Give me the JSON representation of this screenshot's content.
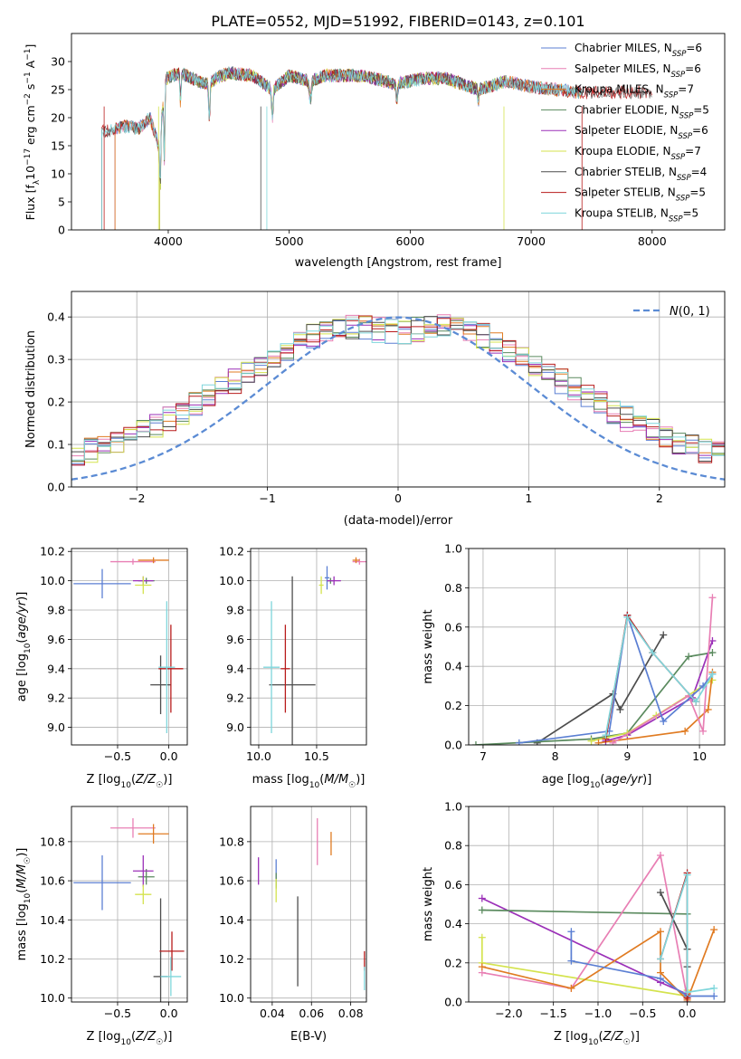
{
  "figure_title": "PLATE=0552, MJD=51992, FIBERID=0143, z=0.101",
  "colors": {
    "Chabrier MILES": "#5b7fd3",
    "Salpeter MILES": "#e87fb4",
    "Kroupa MILES": "#e07b22",
    "Chabrier ELODIE": "#5a8a5e",
    "Salpeter ELODIE": "#9b30b8",
    "Kroupa ELODIE": "#d4e34e",
    "Chabrier STELIB": "#4d4d4d",
    "Salpeter STELIB": "#b81c1c",
    "Kroupa STELIB": "#7fd6db"
  },
  "chart_data": [
    {
      "id": "spectrum",
      "type": "line",
      "title": "PLATE=0552, MJD=51992, FIBERID=0143, z=0.101",
      "xlabel": "wavelength [Angstrom, rest frame]",
      "ylabel": "Flux [f_λ10^-17 erg cm^-2 s^-1 A^-1]",
      "xlim": [
        3200,
        8600
      ],
      "ylim": [
        0,
        35
      ],
      "xticks": [
        4000,
        5000,
        6000,
        7000,
        8000
      ],
      "yticks": [
        0,
        5,
        10,
        15,
        20,
        25,
        30
      ],
      "grid": false,
      "legend_position": "top-right",
      "legend": [
        {
          "label": "Chabrier MILES",
          "n": "6"
        },
        {
          "label": "Salpeter MILES",
          "n": "6"
        },
        {
          "label": "Kroupa MILES",
          "n": "7"
        },
        {
          "label": "Chabrier ELODIE",
          "n": "5"
        },
        {
          "label": "Salpeter ELODIE",
          "n": "6"
        },
        {
          "label": "Kroupa ELODIE",
          "n": "7"
        },
        {
          "label": "Chabrier STELIB",
          "n": "4"
        },
        {
          "label": "Salpeter STELIB",
          "n": "5"
        },
        {
          "label": "Kroupa STELIB",
          "n": "5"
        }
      ],
      "spectrum_anchors": [
        [
          3470,
          17.5
        ],
        [
          3550,
          18
        ],
        [
          3650,
          18.5
        ],
        [
          3750,
          18
        ],
        [
          3850,
          20
        ],
        [
          3920,
          15
        ],
        [
          3980,
          27
        ],
        [
          4100,
          28
        ],
        [
          4300,
          26
        ],
        [
          4500,
          28
        ],
        [
          4700,
          27.5
        ],
        [
          4860,
          25
        ],
        [
          5000,
          27.5
        ],
        [
          5170,
          26.5
        ],
        [
          5300,
          27.5
        ],
        [
          5600,
          27.5
        ],
        [
          5890,
          26
        ],
        [
          6100,
          27
        ],
        [
          6300,
          27
        ],
        [
          6560,
          25
        ],
        [
          6800,
          26.5
        ],
        [
          7000,
          25.5
        ],
        [
          7200,
          25
        ],
        [
          7400,
          24.5
        ]
      ]
    },
    {
      "id": "residuals",
      "type": "histogram",
      "xlabel": "(data-model)/error",
      "ylabel": "Normed distribution",
      "xlim": [
        -2.5,
        2.5
      ],
      "ylim": [
        0,
        0.46
      ],
      "xticks": [
        -2,
        -1,
        0,
        1,
        2
      ],
      "yticks": [
        0.0,
        0.1,
        0.2,
        0.3,
        0.4
      ],
      "grid": true,
      "legend_position": "top-right",
      "reference_curve": {
        "label": "N(0,1)",
        "mean": 0,
        "sigma": 1
      }
    },
    {
      "id": "age_vs_Z",
      "type": "scatter",
      "xlabel": "Z [log10(Z/Z☉)]",
      "ylabel": "age [log10(age/yr)]",
      "xlim": [
        -0.95,
        0.18
      ],
      "ylim": [
        8.88,
        10.22
      ],
      "xticks": [
        -0.5,
        0.0
      ],
      "yticks": [
        9.0,
        9.2,
        9.4,
        9.6,
        9.8,
        10.0,
        10.2
      ],
      "grid": true,
      "points": [
        {
          "model": "Chabrier MILES",
          "x": -0.65,
          "xerr": 0.28,
          "y": 9.98,
          "yerr": 0.1
        },
        {
          "model": "Salpeter MILES",
          "x": -0.35,
          "xerr": 0.22,
          "y": 10.13,
          "yerr": 0.02
        },
        {
          "model": "Kroupa MILES",
          "x": -0.15,
          "xerr": 0.15,
          "y": 10.14,
          "yerr": 0.02
        },
        {
          "model": "Chabrier ELODIE",
          "x": -0.22,
          "xerr": 0.08,
          "y": 10.0,
          "yerr": 0.02
        },
        {
          "model": "Salpeter ELODIE",
          "x": -0.25,
          "xerr": 0.1,
          "y": 10.0,
          "yerr": 0.03
        },
        {
          "model": "Kroupa ELODIE",
          "x": -0.25,
          "xerr": 0.08,
          "y": 9.97,
          "yerr": 0.06
        },
        {
          "model": "Chabrier STELIB",
          "x": -0.08,
          "xerr": 0.1,
          "y": 9.29,
          "yerr": 0.2
        },
        {
          "model": "Salpeter STELIB",
          "x": 0.02,
          "xerr": 0.12,
          "y": 9.4,
          "yerr": 0.3
        },
        {
          "model": "Kroupa STELIB",
          "x": -0.02,
          "xerr": 0.08,
          "y": 9.41,
          "yerr": 0.45
        }
      ]
    },
    {
      "id": "age_vs_mass",
      "type": "scatter",
      "xlabel": "mass [log10(M/M☉)]",
      "ylabel": "",
      "xlim": [
        9.93,
        10.93
      ],
      "ylim": [
        8.88,
        10.22
      ],
      "xticks": [
        10.0,
        10.5
      ],
      "yticks": [
        9.0,
        9.2,
        9.4,
        9.6,
        9.8,
        10.0,
        10.2
      ],
      "grid": true,
      "points": [
        {
          "model": "Chabrier MILES",
          "x": 10.59,
          "xerr": 0.02,
          "y": 10.02,
          "yerr": 0.08
        },
        {
          "model": "Salpeter MILES",
          "x": 10.87,
          "xerr": 0.06,
          "y": 10.13,
          "yerr": 0.02
        },
        {
          "model": "Kroupa MILES",
          "x": 10.84,
          "xerr": 0.03,
          "y": 10.14,
          "yerr": 0.02
        },
        {
          "model": "Chabrier ELODIE",
          "x": 10.62,
          "xerr": 0.03,
          "y": 10.0,
          "yerr": 0.02
        },
        {
          "model": "Salpeter ELODIE",
          "x": 10.65,
          "xerr": 0.06,
          "y": 10.0,
          "yerr": 0.03
        },
        {
          "model": "Kroupa ELODIE",
          "x": 10.54,
          "xerr": 0.02,
          "y": 9.97,
          "yerr": 0.06
        },
        {
          "model": "Chabrier STELIB",
          "x": 10.29,
          "xerr": 0.2,
          "y": 9.29,
          "yerr": 0.74
        },
        {
          "model": "Salpeter STELIB",
          "x": 10.23,
          "xerr": 0.04,
          "y": 9.4,
          "yerr": 0.3
        },
        {
          "model": "Kroupa STELIB",
          "x": 10.11,
          "xerr": 0.07,
          "y": 9.41,
          "yerr": 0.45
        }
      ]
    },
    {
      "id": "weights_vs_age",
      "type": "line",
      "xlabel": "age [log10(age/yr)]",
      "ylabel": "mass weight",
      "xlim": [
        6.8,
        10.35
      ],
      "ylim": [
        0,
        1
      ],
      "xticks": [
        7,
        8,
        9,
        10
      ],
      "yticks": [
        0.0,
        0.2,
        0.4,
        0.6,
        0.8,
        1.0
      ],
      "grid": true,
      "series": [
        {
          "model": "Chabrier STELIB",
          "x": [
            7.75,
            8.8,
            8.9,
            9.5
          ],
          "y": [
            0.01,
            0.26,
            0.18,
            0.56
          ]
        },
        {
          "model": "Chabrier ELODIE",
          "x": [
            6.9,
            8.5,
            9.0,
            9.85,
            10.18
          ],
          "y": [
            0.0,
            0.03,
            0.06,
            0.45,
            0.47
          ]
        },
        {
          "model": "Salpeter ELODIE",
          "x": [
            8.7,
            9.0,
            9.9,
            10.18
          ],
          "y": [
            0.02,
            0.05,
            0.24,
            0.53
          ]
        },
        {
          "model": "Kroupa ELODIE",
          "x": [
            8.5,
            9.0,
            9.4,
            10.18
          ],
          "y": [
            0.02,
            0.06,
            0.15,
            0.33
          ]
        },
        {
          "model": "Kroupa MILES",
          "x": [
            8.6,
            9.8,
            10.12,
            10.18
          ],
          "y": [
            0.01,
            0.07,
            0.18,
            0.37
          ]
        },
        {
          "model": "Salpeter MILES",
          "x": [
            8.8,
            9.85,
            10.05,
            10.18
          ],
          "y": [
            0.01,
            0.25,
            0.07,
            0.75
          ]
        },
        {
          "model": "Chabrier MILES",
          "x": [
            7.5,
            8.75,
            9.0,
            9.5,
            10.05,
            10.18
          ],
          "y": [
            0.01,
            0.07,
            0.66,
            0.12,
            0.3,
            0.36
          ]
        },
        {
          "model": "Salpeter STELIB",
          "x": [
            8.7,
            9.0,
            9.35,
            9.95
          ],
          "y": [
            0.03,
            0.66,
            0.47,
            0.22
          ]
        },
        {
          "model": "Kroupa STELIB",
          "x": [
            8.7,
            9.0,
            9.35,
            9.95,
            10.18
          ],
          "y": [
            0.05,
            0.65,
            0.47,
            0.22,
            0.36
          ]
        }
      ]
    },
    {
      "id": "mass_vs_Z",
      "type": "scatter",
      "xlabel": "Z [log10(Z/Z☉)]",
      "ylabel": "mass [log10(M/M☉)]",
      "xlim": [
        -0.95,
        0.18
      ],
      "ylim": [
        9.98,
        10.98
      ],
      "xticks": [
        -0.5,
        0.0
      ],
      "yticks": [
        10.0,
        10.2,
        10.4,
        10.6,
        10.8
      ],
      "grid": true,
      "points": [
        {
          "model": "Chabrier MILES",
          "x": -0.65,
          "xerr": 0.28,
          "y": 10.59,
          "yerr": 0.14
        },
        {
          "model": "Salpeter MILES",
          "x": -0.35,
          "xerr": 0.22,
          "y": 10.87,
          "yerr": 0.05
        },
        {
          "model": "Kroupa MILES",
          "x": -0.15,
          "xerr": 0.15,
          "y": 10.84,
          "yerr": 0.05
        },
        {
          "model": "Chabrier ELODIE",
          "x": -0.22,
          "xerr": 0.08,
          "y": 10.62,
          "yerr": 0.04
        },
        {
          "model": "Salpeter ELODIE",
          "x": -0.25,
          "xerr": 0.1,
          "y": 10.65,
          "yerr": 0.08
        },
        {
          "model": "Kroupa ELODIE",
          "x": -0.25,
          "xerr": 0.08,
          "y": 10.53,
          "yerr": 0.05
        },
        {
          "model": "Chabrier STELIB",
          "x": -0.08,
          "xerr": 0.07,
          "y": 10.11,
          "yerr": 0.4
        },
        {
          "model": "Salpeter STELIB",
          "x": 0.03,
          "xerr": 0.12,
          "y": 10.24,
          "yerr": 0.1
        },
        {
          "model": "Kroupa STELIB",
          "x": 0.02,
          "xerr": 0.1,
          "y": 10.11,
          "yerr": 0.1
        }
      ]
    },
    {
      "id": "mass_vs_ebv",
      "type": "scatter",
      "xlabel": "E(B-V)",
      "ylabel": "",
      "xlim": [
        0.029,
        0.088
      ],
      "ylim": [
        9.98,
        10.98
      ],
      "xticks": [
        0.04,
        0.06,
        0.08
      ],
      "yticks": [
        10.0,
        10.2,
        10.4,
        10.6,
        10.8
      ],
      "grid": true,
      "points": [
        {
          "model": "Chabrier MILES",
          "x": 0.042,
          "y": 10.64,
          "yerr": 0.07
        },
        {
          "model": "Salpeter MILES",
          "x": 0.063,
          "y": 10.8,
          "yerr": 0.12
        },
        {
          "model": "Kroupa MILES",
          "x": 0.07,
          "y": 10.79,
          "yerr": 0.06
        },
        {
          "model": "Chabrier ELODIE",
          "x": 0.042,
          "y": 10.6,
          "yerr": 0.04
        },
        {
          "model": "Salpeter ELODIE",
          "x": 0.033,
          "y": 10.65,
          "yerr": 0.07
        },
        {
          "model": "Kroupa ELODIE",
          "x": 0.042,
          "y": 10.55,
          "yerr": 0.06
        },
        {
          "model": "Chabrier STELIB",
          "x": 0.053,
          "y": 10.29,
          "yerr": 0.23
        },
        {
          "model": "Salpeter STELIB",
          "x": 0.087,
          "y": 10.19,
          "yerr": 0.05
        },
        {
          "model": "Kroupa STELIB",
          "x": 0.087,
          "y": 10.1,
          "yerr": 0.06
        }
      ]
    },
    {
      "id": "weights_vs_Z",
      "type": "line",
      "xlabel": "Z [log10(Z/Z☉)]",
      "ylabel": "mass weight",
      "xlim": [
        -2.45,
        0.42
      ],
      "ylim": [
        0,
        1
      ],
      "xticks": [
        -2.0,
        -1.5,
        -1.0,
        -0.5,
        0.0
      ],
      "yticks": [
        0.0,
        0.2,
        0.4,
        0.6,
        0.8,
        1.0
      ],
      "grid": true,
      "series": [
        {
          "model": "Salpeter ELODIE",
          "x": [
            -2.3,
            -0.3,
            0.0
          ],
          "y": [
            0.53,
            0.1,
            0.04
          ]
        },
        {
          "model": "Chabrier ELODIE",
          "x": [
            -2.3,
            0.0
          ],
          "y": [
            0.47,
            0.45
          ]
        },
        {
          "model": "Kroupa ELODIE",
          "x": [
            -2.3,
            -2.3,
            0.0,
            0.0
          ],
          "y": [
            0.33,
            0.2,
            0.03,
            0.06
          ]
        },
        {
          "model": "Salpeter MILES",
          "x": [
            -2.3,
            -1.3,
            -0.3,
            0.0
          ],
          "y": [
            0.15,
            0.07,
            0.75,
            0.02
          ]
        },
        {
          "model": "Kroupa MILES",
          "x": [
            -2.3,
            -1.3,
            -0.3,
            -0.3,
            0.0,
            0.3
          ],
          "y": [
            0.18,
            0.07,
            0.36,
            0.15,
            0.01,
            0.37
          ]
        },
        {
          "model": "Chabrier MILES",
          "x": [
            -1.3,
            -1.3,
            -0.3,
            0.0,
            0.3
          ],
          "y": [
            0.36,
            0.21,
            0.12,
            0.03,
            0.03
          ]
        },
        {
          "model": "Chabrier STELIB",
          "x": [
            -0.3,
            0.0,
            0.0,
            0.0
          ],
          "y": [
            0.56,
            0.27,
            0.18,
            0.0
          ]
        },
        {
          "model": "Salpeter STELIB",
          "x": [
            -0.3,
            0.0,
            0.0
          ],
          "y": [
            0.22,
            0.66,
            0.02
          ]
        },
        {
          "model": "Kroupa STELIB",
          "x": [
            -0.3,
            0.0,
            0.0,
            0.3
          ],
          "y": [
            0.22,
            0.65,
            0.05,
            0.07
          ]
        }
      ]
    }
  ]
}
